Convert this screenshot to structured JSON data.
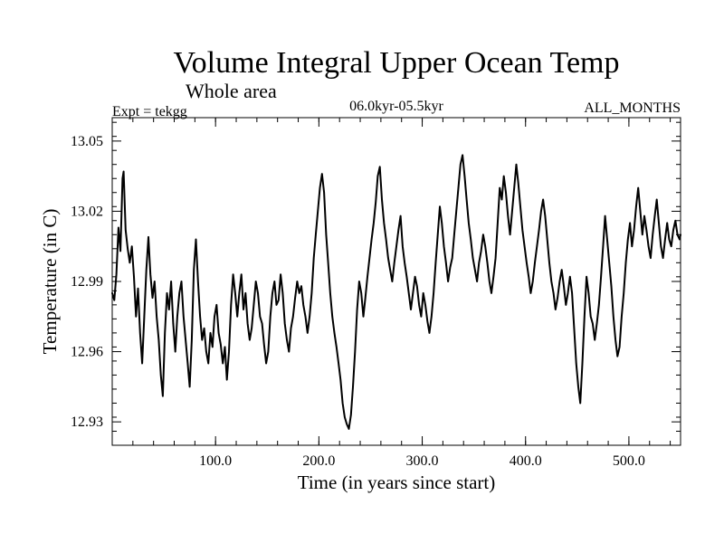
{
  "chart_data": {
    "type": "line",
    "title": "Volume Integral Upper Ocean Temp",
    "subtitle": "Whole area",
    "experiment_label": "Expt = tekgg",
    "period_label": "06.0kyr-05.5kyr",
    "months_label": "ALL_MONTHS",
    "xlabel": "Time (in years since start)",
    "ylabel": "Temperature (in C)",
    "xlim": [
      0,
      550
    ],
    "ylim": [
      12.92,
      13.06
    ],
    "xticks": [
      100,
      200,
      300,
      400,
      500
    ],
    "xtick_labels": [
      "100.0",
      "200.0",
      "300.0",
      "400.0",
      "500.0"
    ],
    "yticks": [
      12.93,
      12.96,
      12.99,
      13.02,
      13.05
    ],
    "ytick_labels": [
      "12.93",
      "12.96",
      "12.99",
      "13.02",
      "13.05"
    ],
    "x_minor_step": 20,
    "y_minor_step": 0.006,
    "grid": false,
    "series": [
      {
        "name": "temperature",
        "color": "#000000",
        "points": [
          [
            0,
            12.985
          ],
          [
            2,
            12.982
          ],
          [
            4,
            12.993
          ],
          [
            6,
            13.013
          ],
          [
            8,
            13.003
          ],
          [
            10,
            13.034
          ],
          [
            11,
            13.037
          ],
          [
            13,
            13.012
          ],
          [
            15,
            13.004
          ],
          [
            17,
            12.998
          ],
          [
            19,
            13.005
          ],
          [
            21,
            12.992
          ],
          [
            23,
            12.975
          ],
          [
            25,
            12.987
          ],
          [
            27,
            12.968
          ],
          [
            29,
            12.955
          ],
          [
            31,
            12.975
          ],
          [
            33,
            12.995
          ],
          [
            35,
            13.009
          ],
          [
            37,
            12.993
          ],
          [
            39,
            12.983
          ],
          [
            41,
            12.99
          ],
          [
            43,
            12.975
          ],
          [
            45,
            12.965
          ],
          [
            47,
            12.95
          ],
          [
            49,
            12.941
          ],
          [
            51,
            12.968
          ],
          [
            53,
            12.985
          ],
          [
            55,
            12.978
          ],
          [
            57,
            12.99
          ],
          [
            59,
            12.972
          ],
          [
            61,
            12.96
          ],
          [
            63,
            12.975
          ],
          [
            65,
            12.985
          ],
          [
            67,
            12.99
          ],
          [
            69,
            12.975
          ],
          [
            71,
            12.965
          ],
          [
            73,
            12.955
          ],
          [
            75,
            12.945
          ],
          [
            77,
            12.965
          ],
          [
            79,
            12.995
          ],
          [
            81,
            13.008
          ],
          [
            83,
            12.99
          ],
          [
            85,
            12.975
          ],
          [
            87,
            12.965
          ],
          [
            89,
            12.97
          ],
          [
            91,
            12.96
          ],
          [
            93,
            12.955
          ],
          [
            95,
            12.968
          ],
          [
            97,
            12.962
          ],
          [
            99,
            12.975
          ],
          [
            101,
            12.98
          ],
          [
            103,
            12.968
          ],
          [
            105,
            12.963
          ],
          [
            107,
            12.955
          ],
          [
            109,
            12.962
          ],
          [
            111,
            12.948
          ],
          [
            113,
            12.96
          ],
          [
            115,
            12.98
          ],
          [
            117,
            12.993
          ],
          [
            119,
            12.985
          ],
          [
            121,
            12.975
          ],
          [
            123,
            12.985
          ],
          [
            125,
            12.993
          ],
          [
            127,
            12.978
          ],
          [
            129,
            12.985
          ],
          [
            131,
            12.972
          ],
          [
            133,
            12.965
          ],
          [
            135,
            12.97
          ],
          [
            137,
            12.98
          ],
          [
            139,
            12.99
          ],
          [
            141,
            12.985
          ],
          [
            143,
            12.975
          ],
          [
            145,
            12.972
          ],
          [
            147,
            12.963
          ],
          [
            149,
            12.955
          ],
          [
            151,
            12.96
          ],
          [
            153,
            12.975
          ],
          [
            155,
            12.985
          ],
          [
            157,
            12.99
          ],
          [
            159,
            12.98
          ],
          [
            161,
            12.982
          ],
          [
            163,
            12.993
          ],
          [
            165,
            12.985
          ],
          [
            167,
            12.972
          ],
          [
            169,
            12.965
          ],
          [
            171,
            12.96
          ],
          [
            173,
            12.97
          ],
          [
            175,
            12.975
          ],
          [
            177,
            12.983
          ],
          [
            179,
            12.99
          ],
          [
            181,
            12.985
          ],
          [
            183,
            12.988
          ],
          [
            185,
            12.98
          ],
          [
            187,
            12.975
          ],
          [
            189,
            12.968
          ],
          [
            191,
            12.975
          ],
          [
            193,
            12.985
          ],
          [
            195,
            13.0
          ],
          [
            197,
            13.01
          ],
          [
            199,
            13.02
          ],
          [
            201,
            13.03
          ],
          [
            203,
            13.036
          ],
          [
            205,
            13.028
          ],
          [
            207,
            13.01
          ],
          [
            209,
            12.998
          ],
          [
            211,
            12.985
          ],
          [
            213,
            12.975
          ],
          [
            215,
            12.968
          ],
          [
            217,
            12.962
          ],
          [
            219,
            12.955
          ],
          [
            221,
            12.948
          ],
          [
            223,
            12.938
          ],
          [
            225,
            12.932
          ],
          [
            227,
            12.929
          ],
          [
            229,
            12.927
          ],
          [
            231,
            12.933
          ],
          [
            233,
            12.945
          ],
          [
            235,
            12.96
          ],
          [
            237,
            12.978
          ],
          [
            239,
            12.99
          ],
          [
            241,
            12.985
          ],
          [
            243,
            12.975
          ],
          [
            245,
            12.983
          ],
          [
            247,
            12.992
          ],
          [
            249,
            13.0
          ],
          [
            251,
            13.008
          ],
          [
            253,
            13.015
          ],
          [
            255,
            13.024
          ],
          [
            257,
            13.035
          ],
          [
            259,
            13.039
          ],
          [
            261,
            13.025
          ],
          [
            263,
            13.015
          ],
          [
            265,
            13.008
          ],
          [
            267,
            13.0
          ],
          [
            269,
            12.995
          ],
          [
            271,
            12.99
          ],
          [
            273,
            12.998
          ],
          [
            275,
            13.005
          ],
          [
            277,
            13.012
          ],
          [
            279,
            13.018
          ],
          [
            281,
            13.005
          ],
          [
            283,
            12.998
          ],
          [
            285,
            12.992
          ],
          [
            287,
            12.985
          ],
          [
            289,
            12.978
          ],
          [
            291,
            12.985
          ],
          [
            293,
            12.992
          ],
          [
            295,
            12.988
          ],
          [
            297,
            12.98
          ],
          [
            299,
            12.975
          ],
          [
            301,
            12.985
          ],
          [
            303,
            12.98
          ],
          [
            305,
            12.973
          ],
          [
            307,
            12.968
          ],
          [
            309,
            12.975
          ],
          [
            311,
            12.985
          ],
          [
            313,
            12.998
          ],
          [
            315,
            13.01
          ],
          [
            317,
            13.022
          ],
          [
            319,
            13.015
          ],
          [
            321,
            13.005
          ],
          [
            323,
            12.998
          ],
          [
            325,
            12.99
          ],
          [
            327,
            12.996
          ],
          [
            329,
            13.0
          ],
          [
            331,
            13.01
          ],
          [
            333,
            13.02
          ],
          [
            335,
            13.03
          ],
          [
            337,
            13.04
          ],
          [
            339,
            13.044
          ],
          [
            341,
            13.035
          ],
          [
            343,
            13.025
          ],
          [
            345,
            13.015
          ],
          [
            347,
            13.008
          ],
          [
            349,
            13.0
          ],
          [
            351,
            12.995
          ],
          [
            353,
            12.99
          ],
          [
            355,
            12.998
          ],
          [
            357,
            13.003
          ],
          [
            359,
            13.01
          ],
          [
            361,
            13.005
          ],
          [
            363,
            12.998
          ],
          [
            365,
            12.99
          ],
          [
            367,
            12.985
          ],
          [
            369,
            12.992
          ],
          [
            371,
            13.0
          ],
          [
            373,
            13.015
          ],
          [
            375,
            13.03
          ],
          [
            377,
            13.025
          ],
          [
            379,
            13.035
          ],
          [
            381,
            13.028
          ],
          [
            383,
            13.018
          ],
          [
            385,
            13.01
          ],
          [
            387,
            13.02
          ],
          [
            389,
            13.03
          ],
          [
            391,
            13.04
          ],
          [
            393,
            13.032
          ],
          [
            395,
            13.022
          ],
          [
            397,
            13.012
          ],
          [
            399,
            13.005
          ],
          [
            401,
            12.998
          ],
          [
            403,
            12.992
          ],
          [
            405,
            12.985
          ],
          [
            407,
            12.99
          ],
          [
            409,
            12.998
          ],
          [
            411,
            13.005
          ],
          [
            413,
            13.012
          ],
          [
            415,
            13.02
          ],
          [
            417,
            13.025
          ],
          [
            419,
            13.018
          ],
          [
            421,
            13.008
          ],
          [
            423,
            12.998
          ],
          [
            425,
            12.99
          ],
          [
            427,
            12.985
          ],
          [
            429,
            12.978
          ],
          [
            431,
            12.983
          ],
          [
            433,
            12.99
          ],
          [
            435,
            12.995
          ],
          [
            437,
            12.988
          ],
          [
            439,
            12.98
          ],
          [
            441,
            12.985
          ],
          [
            443,
            12.992
          ],
          [
            445,
            12.985
          ],
          [
            447,
            12.97
          ],
          [
            449,
            12.955
          ],
          [
            451,
            12.945
          ],
          [
            453,
            12.938
          ],
          [
            455,
            12.955
          ],
          [
            457,
            12.975
          ],
          [
            459,
            12.992
          ],
          [
            461,
            12.985
          ],
          [
            463,
            12.975
          ],
          [
            465,
            12.972
          ],
          [
            467,
            12.965
          ],
          [
            469,
            12.972
          ],
          [
            471,
            12.98
          ],
          [
            473,
            12.992
          ],
          [
            475,
            13.005
          ],
          [
            477,
            13.018
          ],
          [
            479,
            13.008
          ],
          [
            481,
            12.998
          ],
          [
            483,
            12.988
          ],
          [
            485,
            12.975
          ],
          [
            487,
            12.965
          ],
          [
            489,
            12.958
          ],
          [
            491,
            12.962
          ],
          [
            493,
            12.975
          ],
          [
            495,
            12.985
          ],
          [
            497,
            12.998
          ],
          [
            499,
            13.008
          ],
          [
            501,
            13.015
          ],
          [
            503,
            13.005
          ],
          [
            505,
            13.012
          ],
          [
            507,
            13.022
          ],
          [
            509,
            13.03
          ],
          [
            511,
            13.02
          ],
          [
            513,
            13.01
          ],
          [
            515,
            13.018
          ],
          [
            517,
            13.012
          ],
          [
            519,
            13.005
          ],
          [
            521,
            13.0
          ],
          [
            523,
            13.01
          ],
          [
            525,
            13.018
          ],
          [
            527,
            13.025
          ],
          [
            529,
            13.015
          ],
          [
            531,
            13.005
          ],
          [
            533,
            13.0
          ],
          [
            535,
            13.008
          ],
          [
            537,
            13.015
          ],
          [
            539,
            13.008
          ],
          [
            541,
            13.005
          ],
          [
            543,
            13.012
          ],
          [
            545,
            13.016
          ],
          [
            547,
            13.01
          ],
          [
            549,
            13.008
          ],
          [
            550,
            13.01
          ]
        ]
      }
    ]
  }
}
